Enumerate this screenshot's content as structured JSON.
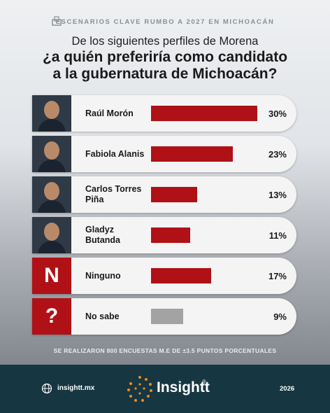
{
  "header": {
    "kicker": "ESCENARIOS CLAVE RUMBO A 2027 EN MICHOACÁN"
  },
  "chart_data": {
    "type": "bar",
    "subtitle": "De los siguientes perfiles de Morena",
    "title": "¿a quién preferiría como candidato a la gubernatura de Michoacán?",
    "categories": [
      "Raúl Morón",
      "Fabiola Alanis",
      "Carlos Torres Piña",
      "Gladyz Butanda",
      "Ninguno",
      "No sabe"
    ],
    "badges": [
      null,
      null,
      null,
      null,
      "N",
      "?"
    ],
    "values": [
      30,
      23,
      13,
      11,
      17,
      9
    ],
    "value_labels": [
      "30%",
      "23%",
      "13%",
      "11%",
      "17%",
      "9%"
    ],
    "colors": [
      "#b01116",
      "#b01116",
      "#b01116",
      "#b01116",
      "#b01116",
      "#a3a3a3"
    ],
    "note": "SE REALIZARON 800 ENCUESTAS  M.E DE ±3.5 PUNTOS PORCENTUALES"
  },
  "footer": {
    "website": "insightt.mx",
    "brand": "Insightt",
    "registered": "®",
    "year": "2026"
  }
}
